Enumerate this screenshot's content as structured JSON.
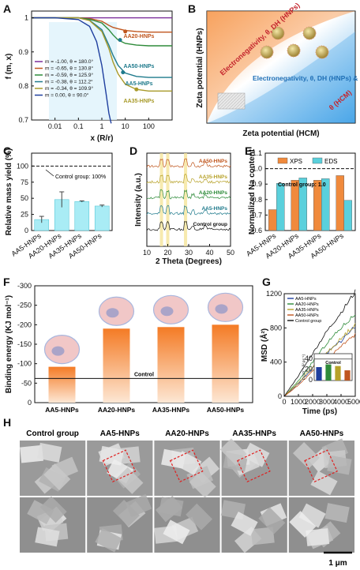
{
  "panels": {
    "A": "A",
    "B": "B",
    "C": "C",
    "D": "D",
    "E": "E",
    "F": "F",
    "G": "G",
    "H": "H"
  },
  "chart_data": [
    {
      "panel": "A",
      "type": "line",
      "xlabel": "x (R/r)",
      "ylabel": "f (m, x)",
      "xscale": "log",
      "xlim": [
        0.001,
        1000
      ],
      "ylim": [
        0.7,
        1.02
      ],
      "xticks": [
        "0.01",
        "0.1",
        "1",
        "10",
        "100"
      ],
      "yticks": [
        "0.7",
        "0.8",
        "0.9",
        "1"
      ],
      "legend_position": "bottom-left",
      "series": [
        {
          "name": "m = -1.00, θ = 180.0°",
          "color": "#7b2d9b",
          "x": [
            0.001,
            0.01,
            0.1,
            0.3,
            1,
            3,
            10,
            30,
            100,
            300,
            1000
          ],
          "y": [
            1.0,
            1.0,
            1.0,
            1.0,
            1.0,
            1.0,
            1.0,
            1.0,
            1.0,
            1.0,
            1.0
          ]
        },
        {
          "name": "m = -0.65, θ = 130.8°",
          "color": "#c0561e",
          "x": [
            0.001,
            0.01,
            0.1,
            0.3,
            1,
            2,
            3,
            5,
            10,
            30,
            100,
            300,
            1000
          ],
          "y": [
            1.0,
            1.0,
            1.0,
            0.998,
            0.99,
            0.978,
            0.972,
            0.968,
            0.963,
            0.96,
            0.958,
            0.958,
            0.958
          ]
        },
        {
          "name": "m = -0.59, θ = 125.9°",
          "color": "#2e8b3a",
          "x": [
            0.001,
            0.01,
            0.1,
            0.3,
            1,
            2,
            3,
            5,
            10,
            30,
            100,
            300,
            1000
          ],
          "y": [
            1.0,
            1.0,
            1.0,
            0.996,
            0.985,
            0.965,
            0.95,
            0.935,
            0.925,
            0.92,
            0.918,
            0.918,
            0.918
          ]
        },
        {
          "name": "m = -0.38, θ = 112.2°",
          "color": "#1f7a8c",
          "x": [
            0.001,
            0.01,
            0.1,
            0.3,
            1,
            2,
            3,
            5,
            10,
            30,
            100,
            300,
            1000
          ],
          "y": [
            1.0,
            1.0,
            1.0,
            0.993,
            0.965,
            0.92,
            0.89,
            0.86,
            0.838,
            0.828,
            0.825,
            0.825,
            0.825
          ]
        },
        {
          "name": "m = -0.34, θ = 109.9°",
          "color": "#a89a2a",
          "x": [
            0.001,
            0.01,
            0.1,
            0.3,
            1,
            2,
            3,
            5,
            10,
            30,
            100,
            300,
            1000
          ],
          "y": [
            1.0,
            1.0,
            1.0,
            0.992,
            0.96,
            0.91,
            0.87,
            0.835,
            0.805,
            0.79,
            0.785,
            0.785,
            0.785
          ]
        },
        {
          "name": "m = 0.00, θ = 90.0°",
          "color": "#1f3f9f",
          "x": [
            0.001,
            0.01,
            0.1,
            0.3,
            0.6,
            1,
            1.5,
            2,
            2.5
          ],
          "y": [
            1.0,
            1.0,
            0.995,
            0.975,
            0.93,
            0.86,
            0.78,
            0.72,
            0.69
          ]
        }
      ],
      "annotations": [
        {
          "text": "AA5-HNPs",
          "x": 45,
          "y": 0.93
        },
        {
          "text": "AA20-HNPs",
          "x": 60,
          "y": 0.96
        },
        {
          "text": "AA35-HNPs",
          "x": 25,
          "y": 0.775
        },
        {
          "text": "AA50-HNPs",
          "x": 55,
          "y": 0.835
        }
      ]
    },
    {
      "panel": "B",
      "type": "diagram",
      "xlabel": "Zeta potential (HCM)",
      "ylabel": "Zeta potential (HNPs)",
      "labels": [
        "Electronegativity, θ, DH (HNPs)",
        "Electronegativity, θ, DH (HNPs) & θ (HCM)",
        "θ (HCM)"
      ]
    },
    {
      "panel": "C",
      "type": "bar",
      "ylabel": "Relative mass yield (%)",
      "ylim": [
        0,
        120
      ],
      "yticks": [
        "0",
        "25",
        "50",
        "75",
        "100"
      ],
      "categories": [
        "AA5-HNPs",
        "AA20-HNPs",
        "AA35-HNPs",
        "AA50-HNPs"
      ],
      "values": [
        17,
        48,
        45,
        38
      ],
      "errors": [
        5,
        12,
        1,
        1.5
      ],
      "reference_line": 100,
      "reference_label": "Control group: 100%"
    },
    {
      "panel": "D",
      "type": "line",
      "xlabel": "2 Theta (Degrees)",
      "ylabel": "Intensity (a.u.)",
      "xlim": [
        10,
        50
      ],
      "xticks": [
        "10",
        "20",
        "30",
        "40",
        "50"
      ],
      "series_labels": [
        "AA50-HNPs",
        "AA35-HNPs",
        "AA20-HNPs",
        "AA5-HNPs",
        "Control group"
      ],
      "highlight_peaks": [
        17,
        20,
        28.5
      ]
    },
    {
      "panel": "E",
      "type": "bar",
      "ylabel": "Normalized Na content",
      "ylim": [
        0.6,
        1.1
      ],
      "yticks": [
        "0.6",
        "0.7",
        "0.8",
        "0.9",
        "1.0",
        "1.1"
      ],
      "categories": [
        "AA5-HNPs",
        "AA20-HNPs",
        "AA35-HNPs",
        "AA50-HNPs"
      ],
      "series": [
        {
          "name": "XPS",
          "color": "#f08a3c",
          "values": [
            0.735,
            0.925,
            0.925,
            0.955
          ]
        },
        {
          "name": "EDS",
          "color": "#5ad0dc",
          "values": [
            0.905,
            0.94,
            0.935,
            0.795
          ]
        }
      ],
      "reference_line": 1.0,
      "reference_label": "Control group: 1.0",
      "legend_position": "top"
    },
    {
      "panel": "F",
      "type": "bar",
      "ylabel": "Binding energy (KJ mol⁻¹)",
      "ylim": [
        0,
        -300
      ],
      "yticks": [
        "0",
        "-50",
        "-100",
        "-150",
        "-200",
        "-250",
        "-300"
      ],
      "categories": [
        "AA5-HNPs",
        "AA20-HNPs",
        "AA35-HNPs",
        "AA50-HNPs"
      ],
      "values": [
        -92,
        -190,
        -194,
        -200
      ],
      "reference_line": -62,
      "reference_label": "Control"
    },
    {
      "panel": "G",
      "type": "line",
      "xlabel": "Time (ps)",
      "ylabel": "MSD (Å²)",
      "xlim": [
        0,
        5000
      ],
      "ylim": [
        0,
        1200
      ],
      "xticks": [
        "0",
        "1000",
        "2000",
        "3000",
        "4000",
        "5000"
      ],
      "yticks": [
        "0",
        "400",
        "800",
        "1200"
      ],
      "series": [
        {
          "name": "AA5-HNPs",
          "color": "#1f3f9f",
          "x": [
            0,
            1000,
            2000,
            3000,
            4000,
            5000
          ],
          "y": [
            0,
            150,
            330,
            500,
            650,
            820
          ]
        },
        {
          "name": "AA20-HNPs",
          "color": "#2e8b3a",
          "x": [
            0,
            1000,
            2000,
            3000,
            4000,
            5000
          ],
          "y": [
            0,
            180,
            400,
            620,
            800,
            960
          ]
        },
        {
          "name": "AA35-HNPs",
          "color": "#b7a22a",
          "x": [
            0,
            1000,
            2000,
            3000,
            4000,
            5000
          ],
          "y": [
            0,
            160,
            340,
            510,
            670,
            850
          ]
        },
        {
          "name": "AA50-HNPs",
          "color": "#c0561e",
          "x": [
            0,
            1000,
            2000,
            3000,
            4000,
            5000
          ],
          "y": [
            0,
            130,
            290,
            440,
            580,
            720
          ]
        },
        {
          "name": "Control group",
          "color": "#111111",
          "x": [
            0,
            1000,
            2000,
            3000,
            4000,
            5000
          ],
          "y": [
            0,
            240,
            500,
            760,
            980,
            1220
          ]
        }
      ],
      "inset": {
        "ylabel": "D (10⁻⁵ Å² ps⁻¹)",
        "label": "Control",
        "reference_line": 40,
        "ylim": [
          0,
          50
        ],
        "yticks": [
          "0",
          "20",
          "40"
        ],
        "values": [
          25,
          30,
          27,
          19
        ],
        "colors": [
          "#1f3f9f",
          "#2e8b3a",
          "#b7a22a",
          "#c0561e"
        ]
      }
    },
    {
      "panel": "H",
      "type": "image-grid",
      "column_labels": [
        "Control group",
        "AA5-HNPs",
        "AA20-HNPs",
        "AA35-HNPs",
        "AA50-HNPs"
      ],
      "scale_bar": "1 μm"
    }
  ]
}
